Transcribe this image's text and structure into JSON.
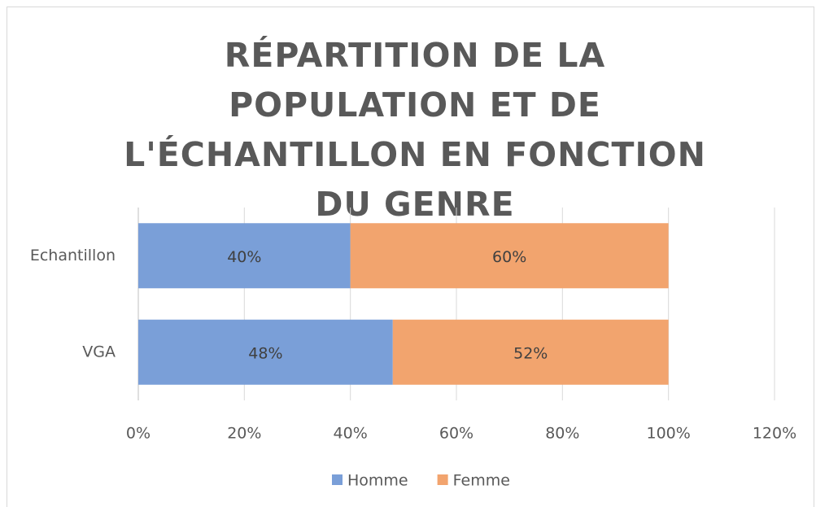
{
  "chart_data": {
    "type": "stacked_bar_horizontal",
    "title": "RÉPARTITION DE LA POPULATION ET DE L'ÉCHANTILLON EN FONCTION DU GENRE",
    "categories": [
      "Echantillon",
      "VGA"
    ],
    "series": [
      {
        "name": "Homme",
        "color": "#7a9fd8",
        "values": [
          40,
          48
        ],
        "value_labels": [
          "40%",
          "48%"
        ]
      },
      {
        "name": "Femme",
        "color": "#f2a46e",
        "values": [
          60,
          52
        ],
        "value_labels": [
          "60%",
          "52%"
        ]
      }
    ],
    "xlim": [
      0,
      120
    ],
    "xticks": [
      {
        "value": 0,
        "label": "0%"
      },
      {
        "value": 20,
        "label": "20%"
      },
      {
        "value": 40,
        "label": "40%"
      },
      {
        "value": 60,
        "label": "60%"
      },
      {
        "value": 80,
        "label": "80%"
      },
      {
        "value": 100,
        "label": "100%"
      },
      {
        "value": 120,
        "label": "120%"
      }
    ],
    "grid": true,
    "legend": "bottom"
  }
}
